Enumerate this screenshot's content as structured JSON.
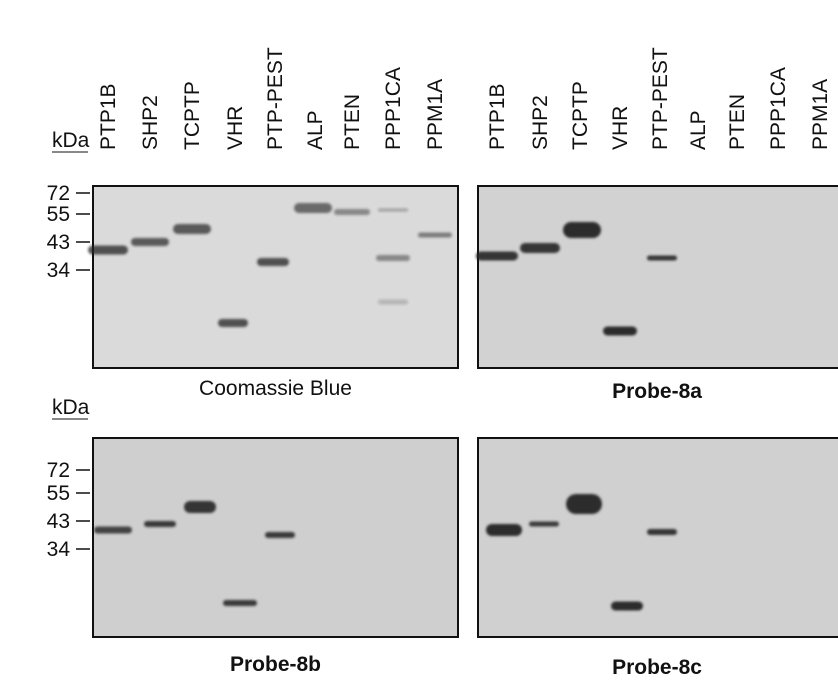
{
  "lanes": [
    [
      "PTP1B",
      "SHP2",
      "TCPTP",
      "VHR",
      "PTP-PEST",
      "ALP",
      "PTEN",
      "PPP1CA",
      "PPM1A"
    ],
    [
      "PTP1B",
      "SHP2",
      "TCPTP",
      "VHR",
      "PTP-PEST",
      "ALP",
      "PTEN",
      "PPP1CA",
      "PPM1A"
    ]
  ],
  "rows": [
    {
      "unit": "kDa",
      "markers": [
        72,
        55,
        43,
        34
      ],
      "captions": [
        "Coomassie Blue",
        "Probe-8a"
      ]
    },
    {
      "unit": "kDa",
      "markers": [
        72,
        55,
        43,
        34
      ],
      "captions": [
        "Probe-8b",
        "Probe-8c"
      ]
    }
  ]
}
